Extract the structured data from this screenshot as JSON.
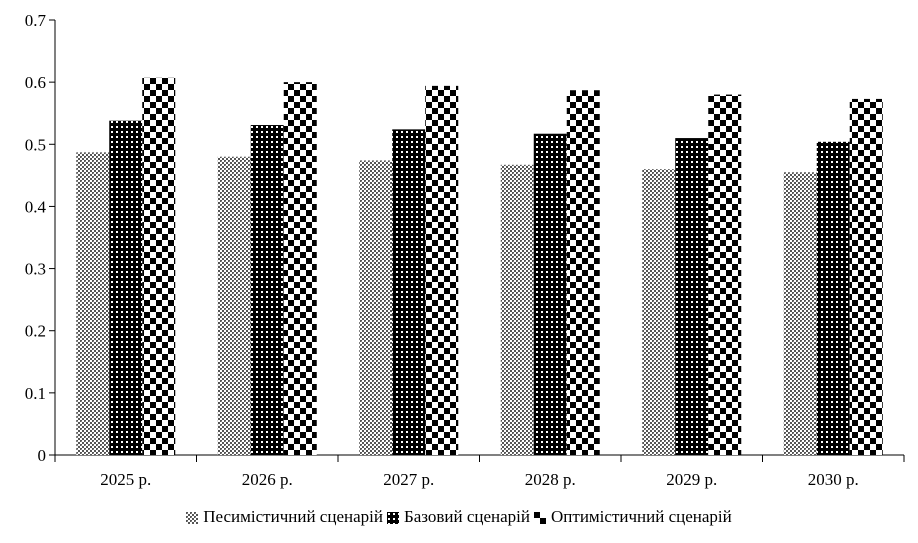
{
  "chart_data": {
    "type": "bar",
    "title": "",
    "xlabel": "",
    "ylabel": "",
    "categories": [
      "2025 р.",
      "2026 р.",
      "2027 р.",
      "2028 р.",
      "2029 р.",
      "2030 р."
    ],
    "ylim": [
      0,
      0.7
    ],
    "yticks": [
      0,
      0.1,
      0.2,
      0.3,
      0.4,
      0.5,
      0.6,
      0.7
    ],
    "ytick_labels": [
      "0",
      "0.1",
      "0.2",
      "0.3",
      "0.4",
      "0.5",
      "0.6",
      "0.7"
    ],
    "grid": false,
    "legend_position": "bottom",
    "series": [
      {
        "name": "Песимістичний сценарій",
        "pattern": "fine-grey-dots",
        "values": [
          0.487,
          0.48,
          0.474,
          0.467,
          0.46,
          0.455
        ]
      },
      {
        "name": "Базовий сценарій",
        "pattern": "black-white-dots",
        "values": [
          0.538,
          0.531,
          0.524,
          0.517,
          0.51,
          0.504
        ]
      },
      {
        "name": "Оптимістичний сценарій",
        "pattern": "checkerboard",
        "values": [
          0.607,
          0.6,
          0.594,
          0.587,
          0.58,
          0.573
        ]
      }
    ]
  }
}
